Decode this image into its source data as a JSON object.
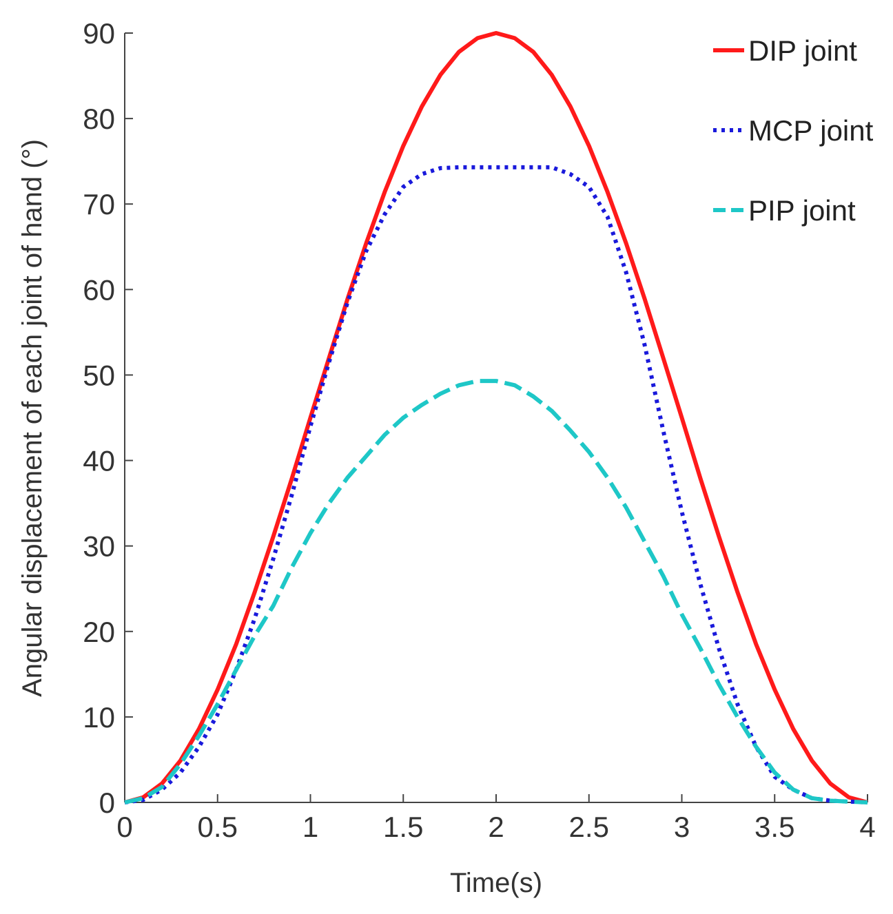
{
  "chart_data": {
    "type": "line",
    "xlabel": "Time(s)",
    "ylabel": "Angular displacement of each joint of hand (°)",
    "xlim": [
      0,
      4
    ],
    "ylim": [
      0,
      90
    ],
    "x_ticks": [
      0,
      0.5,
      1,
      1.5,
      2,
      2.5,
      3,
      3.5,
      4
    ],
    "x_tick_labels": [
      "0",
      "0.5",
      "1",
      "1.5",
      "2",
      "2.5",
      "3",
      "3.5",
      "4"
    ],
    "y_ticks": [
      0,
      10,
      20,
      30,
      40,
      50,
      60,
      70,
      80,
      90
    ],
    "y_tick_labels": [
      "0",
      "10",
      "20",
      "30",
      "40",
      "50",
      "60",
      "70",
      "80",
      "90"
    ],
    "grid": false,
    "legend_position": "top-right",
    "series": [
      {
        "name": "DIP joint",
        "color": "#ff1a1a",
        "style": "solid",
        "x": [
          0,
          0.1,
          0.2,
          0.3,
          0.4,
          0.5,
          0.6,
          0.7,
          0.8,
          0.9,
          1.0,
          1.1,
          1.2,
          1.3,
          1.4,
          1.5,
          1.6,
          1.7,
          1.8,
          1.9,
          2.0,
          2.1,
          2.2,
          2.3,
          2.4,
          2.5,
          2.6,
          2.7,
          2.8,
          2.9,
          3.0,
          3.1,
          3.2,
          3.3,
          3.4,
          3.5,
          3.6,
          3.7,
          3.8,
          3.9,
          4.0
        ],
        "values": [
          0,
          0.6,
          2.2,
          4.9,
          8.6,
          13.2,
          18.5,
          24.6,
          31.1,
          37.9,
          45.0,
          52.0,
          58.9,
          65.4,
          71.4,
          76.8,
          81.4,
          85.1,
          87.8,
          89.4,
          90.0,
          89.4,
          87.8,
          85.1,
          81.4,
          76.8,
          71.4,
          65.4,
          58.9,
          52.0,
          45.0,
          37.9,
          31.1,
          24.6,
          18.5,
          13.2,
          8.6,
          4.9,
          2.2,
          0.6,
          0
        ]
      },
      {
        "name": "MCP joint",
        "color": "#1a1adb",
        "style": "dotted",
        "x": [
          0,
          0.1,
          0.2,
          0.3,
          0.4,
          0.5,
          0.6,
          0.7,
          0.8,
          0.9,
          1.0,
          1.1,
          1.2,
          1.3,
          1.4,
          1.5,
          1.6,
          1.7,
          1.8,
          1.9,
          2.0,
          2.1,
          2.2,
          2.3,
          2.4,
          2.5,
          2.6,
          2.7,
          2.8,
          2.9,
          3.0,
          3.1,
          3.2,
          3.3,
          3.4,
          3.5,
          3.6,
          3.7,
          3.8,
          3.9,
          4.0
        ],
        "values": [
          0,
          0.3,
          1.5,
          3.5,
          6.5,
          10.3,
          15.5,
          21.5,
          28.5,
          36.0,
          44.0,
          51.5,
          58.5,
          64.5,
          68.8,
          72.0,
          73.5,
          74.2,
          74.3,
          74.3,
          74.3,
          74.3,
          74.3,
          74.3,
          73.5,
          72.0,
          68.5,
          62.0,
          53.5,
          43.5,
          34.0,
          25.5,
          18.0,
          11.5,
          6.5,
          3.0,
          1.5,
          0.5,
          0.2,
          0.1,
          0
        ]
      },
      {
        "name": "PIP joint",
        "color": "#1ec7c7",
        "style": "dashed",
        "x": [
          0,
          0.1,
          0.2,
          0.3,
          0.4,
          0.5,
          0.6,
          0.7,
          0.8,
          0.9,
          1.0,
          1.1,
          1.2,
          1.3,
          1.4,
          1.5,
          1.6,
          1.7,
          1.8,
          1.9,
          2.0,
          2.1,
          2.2,
          2.3,
          2.4,
          2.5,
          2.6,
          2.7,
          2.8,
          2.9,
          3.0,
          3.1,
          3.2,
          3.3,
          3.4,
          3.5,
          3.6,
          3.7,
          3.8,
          3.9,
          4.0
        ],
        "values": [
          0,
          0.5,
          1.8,
          4.5,
          7.8,
          11.5,
          15.5,
          19.5,
          23.0,
          27.5,
          31.5,
          35.0,
          38.0,
          40.5,
          43.0,
          45.0,
          46.5,
          47.8,
          48.8,
          49.3,
          49.3,
          48.8,
          47.5,
          45.8,
          43.5,
          41.0,
          38.0,
          34.5,
          30.5,
          26.5,
          22.0,
          18.0,
          13.8,
          10.0,
          6.5,
          3.5,
          1.5,
          0.5,
          0.2,
          0.1,
          0
        ]
      }
    ]
  }
}
